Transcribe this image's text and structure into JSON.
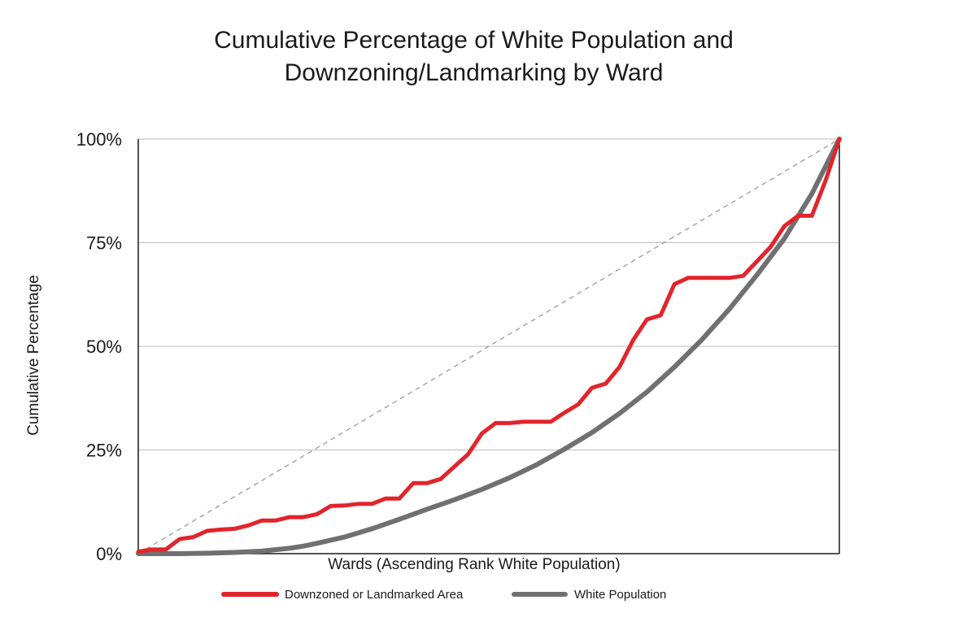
{
  "chart_data": {
    "type": "line",
    "title": "Cumulative Percentage of White Population and Downzoning/Landmarking by Ward",
    "title_lines": [
      "Cumulative Percentage of White Population and",
      "Downzoning/Landmarking by Ward"
    ],
    "xlabel": "Wards (Ascending Rank White Population)",
    "ylabel": "Cumulative Percentage",
    "xlim": [
      0,
      51
    ],
    "ylim": [
      0,
      100
    ],
    "y_ticks": [
      {
        "value": 0,
        "label": "0%"
      },
      {
        "value": 25,
        "label": "25%"
      },
      {
        "value": 50,
        "label": "50%"
      },
      {
        "value": 75,
        "label": "75%"
      },
      {
        "value": 100,
        "label": "100%"
      }
    ],
    "grid": "horizontal",
    "legend_position": "bottom",
    "equality_line": {
      "from": [
        0,
        0
      ],
      "to": [
        51,
        100
      ],
      "style": "dashed",
      "color": "#9a9a9a"
    },
    "series": [
      {
        "name": "Downzoned or Landmarked Area",
        "color": "#e2242b",
        "x": [
          0,
          1,
          2,
          3,
          4,
          5,
          6,
          7,
          8,
          9,
          10,
          11,
          12,
          13,
          14,
          15,
          16,
          17,
          18,
          19,
          20,
          21,
          22,
          23,
          24,
          25,
          26,
          27,
          28,
          29,
          30,
          31,
          32,
          33,
          34,
          35,
          36,
          37,
          38,
          39,
          40,
          41,
          42,
          43,
          44,
          45,
          46,
          47,
          48,
          49,
          50,
          51
        ],
        "values": [
          0.5,
          1,
          1,
          3.5,
          4,
          5.5,
          5.8,
          6,
          6.8,
          8,
          8,
          8.8,
          8.8,
          9.5,
          11.5,
          11.6,
          12,
          12,
          13.3,
          13.3,
          17,
          17,
          18,
          21,
          24,
          29,
          31.5,
          31.5,
          31.8,
          31.8,
          31.8,
          34,
          36,
          40,
          41,
          45,
          51.5,
          56.5,
          57.5,
          65,
          66.5,
          66.5,
          66.5,
          66.5,
          67,
          70.5,
          74,
          79,
          81.5,
          81.5,
          90,
          100
        ]
      },
      {
        "name": "White Population",
        "color": "#707070",
        "x": [
          0,
          3,
          5,
          7,
          9,
          11,
          12,
          13,
          15,
          17,
          19,
          21,
          23,
          25,
          27,
          29,
          31,
          33,
          35,
          37,
          39,
          41,
          43,
          45,
          47,
          49,
          51
        ],
        "values": [
          0,
          0,
          0.1,
          0.3,
          0.6,
          1.3,
          1.8,
          2.5,
          4,
          6,
          8.3,
          10.7,
          13,
          15.5,
          18.3,
          21.5,
          25.2,
          29.2,
          33.8,
          39,
          45,
          51.6,
          59,
          67.2,
          76,
          86.8,
          100
        ]
      }
    ]
  }
}
